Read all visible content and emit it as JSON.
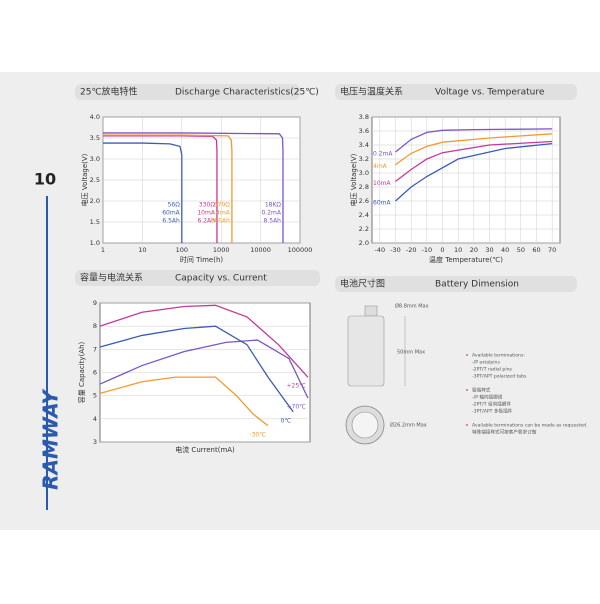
{
  "page": {
    "number": "10",
    "brand": "RAMWAY"
  },
  "chart_data": [
    {
      "type": "line",
      "title": "25℃放电特性",
      "subtitle": "Discharge Characteristics(25℃)",
      "x_label": "时间 Time(h)",
      "y_label": "电压 Voltage(V)",
      "log_x": true,
      "grid": true,
      "xlim": [
        1,
        100000
      ],
      "xticks": [
        1,
        10,
        100,
        1000,
        10000,
        100000
      ],
      "ylim": [
        1,
        4
      ],
      "yticks": [
        {
          "value": 1,
          "label": "1.0"
        },
        1.5,
        {
          "value": 2,
          "label": "2.0"
        },
        2.5,
        {
          "value": 3,
          "label": "3.0"
        },
        3.5,
        {
          "value": 4,
          "label": "4.0"
        }
      ],
      "series": [
        {
          "name": "56Ω",
          "color": "#3d5bb8",
          "labels": [
            "56Ω",
            "60mA",
            "6.5Ah"
          ],
          "x": [
            1,
            10,
            50,
            90,
            100,
            100
          ],
          "values": [
            3.38,
            3.38,
            3.36,
            3.3,
            3.1,
            1
          ]
        },
        {
          "name": "330Ω",
          "color": "#c2399a",
          "labels": [
            "330Ω",
            "10mA",
            "6.2Ah"
          ],
          "x": [
            1,
            100,
            600,
            760,
            780,
            780
          ],
          "values": [
            3.55,
            3.55,
            3.54,
            3.45,
            3.2,
            1
          ]
        },
        {
          "name": "670Ω",
          "color": "#f29a2e",
          "labels": [
            "670Ω",
            "4mA",
            "9.0Ah"
          ],
          "x": [
            1,
            100,
            1500,
            1800,
            1870,
            1870
          ],
          "values": [
            3.57,
            3.57,
            3.55,
            3.45,
            3.2,
            1
          ]
        },
        {
          "name": "18KΩ",
          "color": "#7a55c8",
          "labels": [
            "18KΩ",
            "0.2mA",
            "8.5Ah"
          ],
          "x": [
            1,
            100,
            30000,
            36000,
            37000,
            37000
          ],
          "values": [
            3.62,
            3.62,
            3.6,
            3.5,
            3.2,
            1
          ]
        }
      ]
    },
    {
      "type": "line",
      "title": "电压与温度关系",
      "subtitle": "Voltage vs. Temperature",
      "x_label": "温度 Temperature(℃)",
      "y_label": "电压 Voltage(V)",
      "grid": true,
      "xlim": [
        -45,
        75
      ],
      "xticks": [
        -40,
        -30,
        -20,
        -10,
        0,
        10,
        20,
        30,
        40,
        50,
        60,
        70
      ],
      "ylim": [
        2,
        3.8
      ],
      "yticks": [
        {
          "value": 2,
          "label": "2.0"
        },
        2.2,
        2.4,
        2.6,
        2.8,
        {
          "value": 3,
          "label": "3.0"
        },
        3.2,
        3.4,
        3.6,
        3.8
      ],
      "series": [
        {
          "name": "0.2mA",
          "color": "#7a55c8",
          "labels": [
            "0.2mA"
          ],
          "x": [
            -30,
            -20,
            -10,
            0,
            20,
            70
          ],
          "values": [
            3.3,
            3.48,
            3.58,
            3.61,
            3.62,
            3.63
          ]
        },
        {
          "name": "4mA",
          "color": "#f29a2e",
          "labels": [
            "4mA"
          ],
          "x": [
            -30,
            -20,
            -10,
            0,
            30,
            70
          ],
          "values": [
            3.12,
            3.28,
            3.38,
            3.44,
            3.5,
            3.56
          ]
        },
        {
          "name": "10mA",
          "color": "#c2399a",
          "labels": [
            "10mA"
          ],
          "x": [
            -30,
            -20,
            -10,
            0,
            30,
            70
          ],
          "values": [
            2.88,
            3.05,
            3.2,
            3.29,
            3.4,
            3.45
          ]
        },
        {
          "name": "60mA",
          "color": "#3d5bb8",
          "labels": [
            "60mA"
          ],
          "x": [
            -30,
            -20,
            -10,
            10,
            40,
            70
          ],
          "values": [
            2.6,
            2.8,
            2.95,
            3.2,
            3.35,
            3.42
          ]
        }
      ]
    },
    {
      "type": "line",
      "title": "容量与电流关系",
      "subtitle": "Capacity vs. Current",
      "x_label": "电流 Current(mA)",
      "y_label": "容量 Capacity(Ah)",
      "grid": true,
      "xlim": [
        0,
        10
      ],
      "ylim": [
        3,
        9
      ],
      "yticks": [
        3,
        4,
        5,
        6,
        7,
        8,
        9
      ],
      "series": [
        {
          "name": "+25℃",
          "color": "#c2399a",
          "labels": [
            "+25℃"
          ],
          "x": [
            0,
            2,
            4,
            5.5,
            7,
            8.5,
            9.9
          ],
          "values": [
            8,
            8.6,
            8.85,
            8.9,
            8.4,
            7.2,
            5.8
          ]
        },
        {
          "name": "+70℃",
          "color": "#7a55c8",
          "labels": [
            "+70℃"
          ],
          "x": [
            0,
            2,
            4,
            6,
            7.5,
            9,
            9.9
          ],
          "values": [
            5.5,
            6.3,
            6.9,
            7.3,
            7.4,
            6.6,
            4.9
          ]
        },
        {
          "name": "0℃",
          "color": "#3d5bb8",
          "labels": [
            "0℃"
          ],
          "x": [
            0,
            2,
            4,
            5.5,
            7,
            8,
            9.2
          ],
          "values": [
            7.1,
            7.6,
            7.9,
            8,
            7.2,
            5.8,
            4.3
          ]
        },
        {
          "name": "-30℃",
          "color": "#f29a2e",
          "labels": [
            "-30℃"
          ],
          "x": [
            0,
            2,
            3.6,
            5.5,
            6.5,
            7.3,
            8
          ],
          "values": [
            5.1,
            5.6,
            5.8,
            5.8,
            5,
            4.2,
            3.7
          ]
        }
      ]
    }
  ],
  "dimension": {
    "title": "电池尺寸图",
    "subtitle": "Battery Dimension",
    "cap": "Ø8.8mm Max",
    "height": "50mm Max",
    "diameter": "Ø26.2mm Max",
    "notes": [
      "Available terminations:",
      "-/P axialpins",
      "-2PT/T radial pins",
      "-3PT/APT polarized tabs",
      "极端样式",
      "-/P 轴向插脚线",
      "-2PT/T 径向插脚件",
      "-3PT/APT 多极插件",
      "Available terminations can be made as requested.",
      "特殊端接样式可按客户要求订做"
    ]
  }
}
